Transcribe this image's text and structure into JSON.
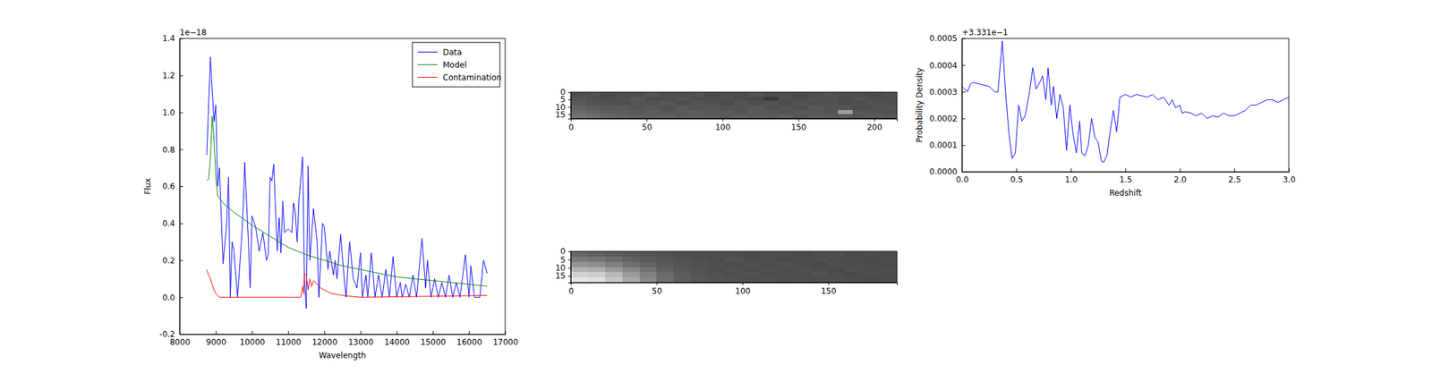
{
  "chart_data": [
    {
      "type": "line",
      "x_label": "Wavelength",
      "y_label": "Flux",
      "y_offset_label": "1e−18",
      "xlim": [
        8000,
        17000
      ],
      "xticks": [
        8000,
        9000,
        10000,
        11000,
        12000,
        13000,
        14000,
        15000,
        16000,
        17000
      ],
      "ylim": [
        -0.2,
        1.4
      ],
      "yticks": [
        {
          "value": -0.2,
          "label": "-0.2"
        },
        {
          "value": 0,
          "label": "0.0"
        },
        {
          "value": 0.2,
          "label": "0.2"
        },
        {
          "value": 0.4,
          "label": "0.4"
        },
        {
          "value": 0.6,
          "label": "0.6"
        },
        {
          "value": 0.8,
          "label": "0.8"
        },
        {
          "value": 1,
          "label": "1.0"
        },
        {
          "value": 1.2,
          "label": "1.2"
        },
        {
          "value": 1.4,
          "label": "1.4"
        }
      ],
      "legend": "upper right",
      "series": [
        {
          "name": "Data",
          "color": "#0000ff",
          "x": [
            8750,
            8850,
            8950,
            9000,
            9050,
            9100,
            9200,
            9300,
            9350,
            9400,
            9450,
            9500,
            9600,
            9700,
            9750,
            9800,
            9900,
            9950,
            10000,
            10100,
            10200,
            10300,
            10400,
            10450,
            10500,
            10550,
            10600,
            10650,
            10700,
            10750,
            10800,
            10850,
            10900,
            11000,
            11100,
            11150,
            11200,
            11250,
            11300,
            11400,
            11450,
            11500,
            11550,
            11600,
            11700,
            11800,
            11850,
            11950,
            12000,
            12100,
            12150,
            12250,
            12300,
            12350,
            12450,
            12550,
            12600,
            12700,
            12800,
            12900,
            13000,
            13050,
            13150,
            13200,
            13300,
            13400,
            13500,
            13600,
            13700,
            13800,
            13900,
            14000,
            14100,
            14150,
            14250,
            14350,
            14450,
            14550,
            14700,
            14800,
            14850,
            14950,
            15050,
            15150,
            15250,
            15350,
            15450,
            15550,
            15650,
            15750,
            15900,
            16000,
            16050,
            16150,
            16300,
            16400,
            16500
          ],
          "values": [
            0.77,
            1.3,
            0.95,
            1.04,
            0.6,
            0.7,
            0.18,
            0.4,
            0.65,
            0.0,
            0.3,
            0.25,
            0.0,
            0.28,
            0.45,
            0.73,
            0.3,
            0.05,
            0.44,
            0.38,
            0.25,
            0.35,
            0.2,
            0.23,
            0.65,
            0.63,
            0.72,
            0.48,
            0.25,
            0.43,
            0.24,
            0.52,
            0.35,
            0.37,
            0.35,
            0.51,
            0.45,
            0.3,
            0.53,
            0.76,
            0.1,
            -0.06,
            0.71,
            0.2,
            0.48,
            0.3,
            0.0,
            0.4,
            0.38,
            0.15,
            0.25,
            0.12,
            0.2,
            0.1,
            0.34,
            0.1,
            0.0,
            0.3,
            0.1,
            0.05,
            0.24,
            0.0,
            0.12,
            0.0,
            0.24,
            0.0,
            0.12,
            0.0,
            0.15,
            0.0,
            0.22,
            0.0,
            0.08,
            0.0,
            0.07,
            0.0,
            0.12,
            0.0,
            0.32,
            0.05,
            0.2,
            0.0,
            0.1,
            0.0,
            0.08,
            0.0,
            0.12,
            0.0,
            0.08,
            0.0,
            0.23,
            0.0,
            0.17,
            0.0,
            0.0,
            0.2,
            0.13
          ]
        },
        {
          "name": "Model",
          "color": "#008000",
          "x": [
            8750,
            8800,
            8850,
            8900,
            8950,
            9000,
            9050,
            9200,
            9500,
            10000,
            10500,
            11000,
            11500,
            12000,
            12500,
            13000,
            13500,
            14000,
            14500,
            15000,
            15500,
            16000,
            16500
          ],
          "values": [
            0.63,
            0.64,
            0.75,
            0.98,
            0.85,
            0.65,
            0.55,
            0.51,
            0.46,
            0.39,
            0.33,
            0.27,
            0.23,
            0.2,
            0.17,
            0.15,
            0.13,
            0.11,
            0.1,
            0.09,
            0.08,
            0.07,
            0.06
          ]
        },
        {
          "name": "Contamination",
          "color": "#ff0000",
          "x": [
            8750,
            8800,
            8850,
            8900,
            8950,
            9000,
            9100,
            9500,
            11350,
            11400,
            11430,
            11450,
            11500,
            11550,
            11600,
            11650,
            11700,
            11800,
            11900,
            12000,
            12200,
            12500,
            13000,
            16500
          ],
          "values": [
            0.15,
            0.12,
            0.1,
            0.07,
            0.04,
            0.02,
            0.0,
            0.0,
            0.0,
            0.06,
            0.02,
            0.13,
            0.12,
            0.04,
            0.1,
            0.06,
            0.09,
            0.07,
            0.05,
            0.04,
            0.02,
            0.01,
            0.0,
            0.01
          ]
        }
      ]
    },
    {
      "type": "heatmap",
      "xlim": [
        0,
        215
      ],
      "ylim": [
        18,
        0
      ],
      "xticks": [
        0,
        50,
        100,
        150,
        200
      ],
      "yticks": [
        0,
        5,
        10,
        15
      ],
      "cells": [
        [
          0.3,
          0.32,
          0.29,
          0.31,
          0.3,
          0.33,
          0.31,
          0.3,
          0.32,
          0.29,
          0.31,
          0.3,
          0.32,
          0.3,
          0.31,
          0.29,
          0.3,
          0.32,
          0.31,
          0.3,
          0.29,
          0.31
        ],
        [
          0.33,
          0.31,
          0.3,
          0.32,
          0.34,
          0.3,
          0.31,
          0.33,
          0.3,
          0.31,
          0.32,
          0.3,
          0.29,
          0.22,
          0.31,
          0.3,
          0.32,
          0.31,
          0.3,
          0.33,
          0.31,
          0.3
        ],
        [
          0.35,
          0.33,
          0.32,
          0.31,
          0.33,
          0.32,
          0.34,
          0.31,
          0.33,
          0.32,
          0.3,
          0.33,
          0.31,
          0.32,
          0.3,
          0.33,
          0.31,
          0.32,
          0.3,
          0.31,
          0.32,
          0.31
        ],
        [
          0.38,
          0.36,
          0.34,
          0.35,
          0.33,
          0.34,
          0.32,
          0.35,
          0.33,
          0.34,
          0.32,
          0.33,
          0.34,
          0.32,
          0.33,
          0.31,
          0.34,
          0.32,
          0.33,
          0.31,
          0.32,
          0.33
        ],
        [
          0.42,
          0.4,
          0.37,
          0.36,
          0.35,
          0.36,
          0.34,
          0.35,
          0.36,
          0.34,
          0.35,
          0.33,
          0.35,
          0.34,
          0.33,
          0.35,
          0.34,
          0.33,
          0.62,
          0.34,
          0.33,
          0.32
        ],
        [
          0.45,
          0.43,
          0.4,
          0.38,
          0.37,
          0.36,
          0.37,
          0.35,
          0.36,
          0.35,
          0.34,
          0.36,
          0.35,
          0.34,
          0.36,
          0.33,
          0.35,
          0.34,
          0.35,
          0.33,
          0.34,
          0.33
        ]
      ]
    },
    {
      "type": "heatmap",
      "xlim": [
        0,
        190
      ],
      "ylim": [
        19,
        0
      ],
      "xticks": [
        0,
        50,
        100,
        150
      ],
      "yticks": [
        0,
        5,
        10,
        15
      ],
      "cells": [
        [
          0.4,
          0.38,
          0.36,
          0.34,
          0.33,
          0.32,
          0.31,
          0.3,
          0.31,
          0.3,
          0.29,
          0.31,
          0.3,
          0.29,
          0.3,
          0.31,
          0.29,
          0.3,
          0.29
        ],
        [
          0.48,
          0.46,
          0.42,
          0.38,
          0.35,
          0.33,
          0.32,
          0.31,
          0.3,
          0.32,
          0.3,
          0.31,
          0.29,
          0.3,
          0.31,
          0.3,
          0.3,
          0.29,
          0.3
        ],
        [
          0.58,
          0.56,
          0.5,
          0.44,
          0.39,
          0.35,
          0.33,
          0.32,
          0.31,
          0.3,
          0.31,
          0.3,
          0.31,
          0.3,
          0.29,
          0.31,
          0.3,
          0.3,
          0.29
        ],
        [
          0.7,
          0.68,
          0.6,
          0.52,
          0.45,
          0.38,
          0.34,
          0.33,
          0.31,
          0.32,
          0.3,
          0.31,
          0.3,
          0.31,
          0.3,
          0.29,
          0.31,
          0.3,
          0.3
        ],
        [
          0.82,
          0.8,
          0.72,
          0.6,
          0.5,
          0.41,
          0.36,
          0.33,
          0.32,
          0.31,
          0.32,
          0.3,
          0.31,
          0.3,
          0.32,
          0.3,
          0.29,
          0.31,
          0.3
        ],
        [
          0.9,
          0.88,
          0.78,
          0.66,
          0.54,
          0.43,
          0.37,
          0.34,
          0.33,
          0.32,
          0.31,
          0.32,
          0.3,
          0.31,
          0.3,
          0.31,
          0.3,
          0.29,
          0.3
        ]
      ]
    },
    {
      "type": "line",
      "x_label": "Redshift",
      "y_label": "Probability Density",
      "y_offset_label": "+3.331e−1",
      "xlim": [
        0,
        3
      ],
      "xticks": [
        {
          "value": 0,
          "label": "0.0"
        },
        {
          "value": 0.5,
          "label": "0.5"
        },
        {
          "value": 1,
          "label": "1.0"
        },
        {
          "value": 1.5,
          "label": "1.5"
        },
        {
          "value": 2,
          "label": "2.0"
        },
        {
          "value": 2.5,
          "label": "2.5"
        },
        {
          "value": 3,
          "label": "3.0"
        }
      ],
      "ylim": [
        0,
        0.0005
      ],
      "yticks": [
        {
          "value": 0,
          "label": "0.0000"
        },
        {
          "value": 0.0001,
          "label": "0.0001"
        },
        {
          "value": 0.0002,
          "label": "0.0002"
        },
        {
          "value": 0.0003,
          "label": "0.0003"
        },
        {
          "value": 0.0004,
          "label": "0.0004"
        },
        {
          "value": 0.0005,
          "label": "0.0005"
        }
      ],
      "series": [
        {
          "color": "#0000ff",
          "x": [
            0.0,
            0.05,
            0.08,
            0.1,
            0.15,
            0.2,
            0.25,
            0.3,
            0.33,
            0.37,
            0.4,
            0.43,
            0.46,
            0.49,
            0.52,
            0.55,
            0.58,
            0.62,
            0.65,
            0.68,
            0.72,
            0.74,
            0.77,
            0.79,
            0.82,
            0.84,
            0.87,
            0.9,
            0.93,
            0.96,
            0.99,
            1.02,
            1.05,
            1.08,
            1.1,
            1.13,
            1.16,
            1.19,
            1.22,
            1.25,
            1.28,
            1.3,
            1.33,
            1.36,
            1.39,
            1.42,
            1.45,
            1.5,
            1.55,
            1.6,
            1.65,
            1.7,
            1.75,
            1.8,
            1.85,
            1.9,
            1.93,
            1.96,
            2.0,
            2.02,
            2.05,
            2.1,
            2.15,
            2.2,
            2.25,
            2.3,
            2.35,
            2.4,
            2.45,
            2.5,
            2.55,
            2.6,
            2.65,
            2.7,
            2.75,
            2.8,
            2.85,
            2.9,
            2.95,
            3.0
          ],
          "values": [
            0.00032,
            0.0003,
            0.00033,
            0.000335,
            0.00033,
            0.000325,
            0.00032,
            0.0003,
            0.000298,
            0.00049,
            0.0003,
            0.00015,
            5e-05,
            7e-05,
            0.00025,
            0.00019,
            0.00021,
            0.0003,
            0.00039,
            0.00031,
            0.00034,
            0.00036,
            0.00027,
            0.00039,
            0.00025,
            0.00032,
            0.0002,
            0.00029,
            0.00024,
            8e-05,
            0.00025,
            0.00014,
            7e-05,
            0.00019,
            7e-05,
            6e-05,
            0.0001,
            0.0002,
            0.00013,
            0.00011,
            4e-05,
            3.5e-05,
            6e-05,
            0.00015,
            0.00023,
            0.00015,
            0.00028,
            0.00029,
            0.00028,
            0.00029,
            0.000285,
            0.00028,
            0.00029,
            0.00027,
            0.00028,
            0.00025,
            0.00027,
            0.00024,
            0.00025,
            0.00022,
            0.000225,
            0.00022,
            0.00021,
            0.00022,
            0.0002,
            0.00021,
            0.000205,
            0.00022,
            0.00021,
            0.00021,
            0.00022,
            0.00023,
            0.00025,
            0.00025,
            0.00026,
            0.00027,
            0.00027,
            0.00026,
            0.00027,
            0.00028
          ]
        }
      ]
    }
  ]
}
